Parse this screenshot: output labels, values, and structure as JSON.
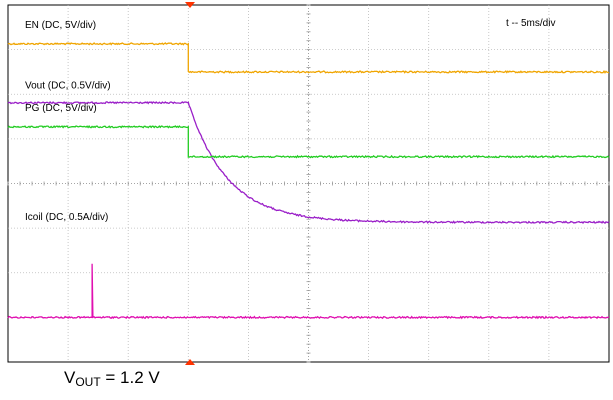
{
  "chart_data": {
    "type": "line",
    "timebase_label": "t -- 5ms/div",
    "grid": true,
    "divisions": {
      "x": 10,
      "y": 8
    },
    "trigger_x_div": 3,
    "channels": [
      {
        "name": "EN (DC, 5V/div)",
        "color": "#f0a500",
        "level_high_div": 0.87,
        "level_low_div": 1.5,
        "step_x_div": 3.0
      },
      {
        "name": "Vout (DC, 0.5V/div)",
        "color": "#9a1fc8",
        "initial_div": 2.19,
        "final_div": 4.87,
        "decay_start_x_div": 3.0,
        "tau_div": 0.65
      },
      {
        "name": "PG (DC, 5V/div)",
        "color": "#22cc22",
        "level_high_div": 2.73,
        "level_low_div": 3.4,
        "step_x_div": 3.0
      },
      {
        "name": "Icoil (DC, 0.5A/div)",
        "color": "#e010b0",
        "level_div": 7.0,
        "spike_x_div": 1.4,
        "spike_top_div": 5.8
      }
    ]
  },
  "caption": {
    "main": "V",
    "sub": "OUT",
    "rest": " = 1.2 V"
  }
}
